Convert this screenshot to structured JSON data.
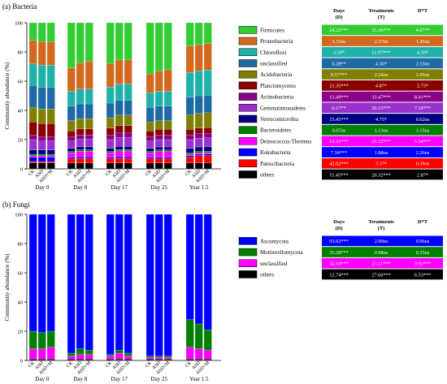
{
  "panel_a": {
    "label": "(a) Bacteria",
    "ylabel": "Community abundance (%)",
    "table_headers": [
      "Days\n(D)",
      "Treatments\n(T)",
      "D*T"
    ]
  },
  "panel_b": {
    "label": "(b) Fungi",
    "ylabel": "Community abundance (%)",
    "table_headers": [
      "Days\n(D)",
      "Treatments\n(T)",
      "D*T"
    ]
  },
  "chart_data": [
    {
      "type": "bar",
      "stacked": true,
      "title": "(a) Bacteria",
      "ylabel": "Community abundance (%)",
      "ylim": [
        0,
        100
      ],
      "yticks": [
        0,
        20,
        40,
        60,
        80,
        100
      ],
      "groups": [
        "Day 0",
        "Day 8",
        "Day 17",
        "Day 25",
        "Year 1.5"
      ],
      "treatments": [
        "CK",
        "ASD",
        "ASD+M"
      ],
      "series": [
        {
          "name": "others",
          "color": "#000000",
          "values": [
            4,
            4,
            4,
            4,
            4,
            4,
            4,
            4,
            4,
            4,
            4,
            4,
            4,
            4,
            4
          ]
        },
        {
          "name": "Patescibacteria",
          "color": "#ff0000",
          "values": [
            1,
            1,
            1,
            3,
            3,
            3,
            3,
            3,
            3,
            3,
            3,
            3,
            4,
            5,
            5
          ]
        },
        {
          "name": "Rokubacteria",
          "color": "#0000ff",
          "values": [
            3,
            3,
            3,
            1,
            1,
            1,
            1,
            1,
            1,
            1,
            1,
            1,
            1,
            1,
            1
          ]
        },
        {
          "name": "Deinococcus-Thermus",
          "color": "#ff00ff",
          "values": [
            1,
            1,
            1,
            3,
            4,
            4,
            3,
            4,
            4,
            3,
            4,
            4,
            1,
            1,
            1
          ]
        },
        {
          "name": "Bacteroidetes",
          "color": "#008000",
          "values": [
            1,
            1,
            1,
            1,
            1,
            1,
            1,
            1,
            1,
            1,
            1,
            1,
            1,
            1,
            1
          ]
        },
        {
          "name": "Verrucomicrobia",
          "color": "#000080",
          "values": [
            3,
            3,
            3,
            2,
            2,
            2,
            2,
            2,
            2,
            2,
            2,
            2,
            3,
            3,
            3
          ]
        },
        {
          "name": "Gemmatimonadetes",
          "color": "#9932cc",
          "values": [
            7,
            6,
            6,
            5,
            5,
            5,
            6,
            6,
            6,
            5,
            5,
            5,
            6,
            6,
            6
          ]
        },
        {
          "name": "Actinobacteria",
          "color": "#8b008b",
          "values": [
            3,
            3,
            3,
            3,
            3,
            3,
            3,
            3,
            3,
            3,
            3,
            3,
            3,
            3,
            3
          ]
        },
        {
          "name": "Planctomycetes",
          "color": "#8b0000",
          "values": [
            9,
            9,
            9,
            4,
            4,
            4,
            5,
            5,
            5,
            4,
            4,
            4,
            4,
            4,
            4
          ]
        },
        {
          "name": "Acidobacteria",
          "color": "#808000",
          "values": [
            10,
            10,
            10,
            7,
            7,
            7,
            7,
            7,
            7,
            6,
            6,
            6,
            10,
            10,
            10
          ]
        },
        {
          "name": "unclassified",
          "color": "#1e6aa5",
          "values": [
            15,
            15,
            15,
            10,
            10,
            10,
            10,
            10,
            10,
            10,
            10,
            10,
            12,
            12,
            12
          ]
        },
        {
          "name": "Chloroflexi",
          "color": "#20b2aa",
          "values": [
            15,
            15,
            15,
            10,
            10,
            10,
            11,
            11,
            11,
            10,
            10,
            10,
            17,
            17,
            17
          ]
        },
        {
          "name": "Proteobacteria",
          "color": "#d2691e",
          "values": [
            16,
            16,
            16,
            16,
            18,
            19,
            16,
            16,
            16,
            13,
            14,
            15,
            18,
            18,
            18
          ]
        },
        {
          "name": "Firmicutes",
          "color": "#32cd32",
          "values": [
            12,
            13,
            13,
            31,
            27,
            26,
            28,
            25,
            25,
            35,
            33,
            32,
            16,
            15,
            14
          ]
        }
      ],
      "stats_table": {
        "headers": [
          "Days\n(D)",
          "Treatments\n(T)",
          "D*T"
        ],
        "rows": [
          {
            "taxon": "Firmicutes",
            "D": "24.22***",
            "T": "31.36***",
            "DT": "4.97**"
          },
          {
            "taxon": "Proteobacteria",
            "D": "1.23ns",
            "T": "2.37ns",
            "DT": "1.45ns"
          },
          {
            "taxon": "Chloroflexi",
            "D": "3.59*",
            "T": "11.97***",
            "DT": "4.39*"
          },
          {
            "taxon": "unclassified",
            "D": "6.28**",
            "T": "4.36*",
            "DT": "2.33ns"
          },
          {
            "taxon": "Acidobacteria",
            "D": "9.57***",
            "T": "2.24ns",
            "DT": "1.95ns"
          },
          {
            "taxon": "Planctomycetes",
            "D": "21.35***",
            "T": "4.87*",
            "DT": "2.73*"
          },
          {
            "taxon": "Actinobacteria",
            "D": "13.49***",
            "T": "33.47***",
            "DT": "8.41***"
          },
          {
            "taxon": "Gemmatimonadetes",
            "D": "6.17**",
            "T": "20.15***",
            "DT": "7.19***"
          },
          {
            "taxon": "Verrucomicrobia",
            "D": "15.45***",
            "T": "4.75*",
            "DT": "0.62ns"
          },
          {
            "taxon": "Bacteroidetes",
            "D": "0.67ns",
            "T": "1.13ns",
            "DT": "1.15ns"
          },
          {
            "taxon": "Deinococcus-Thermus",
            "D": "13.31***",
            "T": "25.32***",
            "DT": "5.54***"
          },
          {
            "taxon": "Rokubacteria",
            "D": "7.34***",
            "T": "1.88ns",
            "DT": "2.26ns"
          },
          {
            "taxon": "Patescibacteria",
            "D": "42.02***",
            "T": "3.37*",
            "DT": "0.39ns"
          },
          {
            "taxon": "others",
            "D": "11.45***",
            "T": "20.32***",
            "DT": "2.87*"
          }
        ]
      }
    },
    {
      "type": "bar",
      "stacked": true,
      "title": "(b) Fungi",
      "ylabel": "Community abundance (%)",
      "ylim": [
        0,
        100
      ],
      "yticks": [
        0,
        20,
        40,
        60,
        80,
        100
      ],
      "groups": [
        "Day 0",
        "Day 8",
        "Day 17",
        "Day 25",
        "Year 1.5"
      ],
      "treatments": [
        "CK",
        "ASD",
        "ASD+M"
      ],
      "series": [
        {
          "name": "others",
          "color": "#000000",
          "values": [
            1,
            1,
            1,
            1,
            1,
            1,
            1,
            1,
            1,
            1,
            1,
            1,
            1,
            1,
            1
          ]
        },
        {
          "name": "unclassified",
          "color": "#ff00ff",
          "values": [
            7,
            7,
            8,
            2,
            3,
            3,
            2,
            4,
            2,
            1,
            1,
            1,
            8,
            7,
            6
          ]
        },
        {
          "name": "Mortierellomycota",
          "color": "#008000",
          "values": [
            12,
            11,
            11,
            2,
            4,
            3,
            1,
            2,
            2,
            1,
            1,
            1,
            19,
            17,
            14
          ]
        },
        {
          "name": "Ascomycota",
          "color": "#0000ff",
          "values": [
            80,
            81,
            80,
            95,
            92,
            93,
            96,
            93,
            95,
            97,
            97,
            97,
            72,
            75,
            79
          ]
        }
      ],
      "stats_table": {
        "headers": [
          "Days\n(D)",
          "Treatments\n(T)",
          "D*T"
        ],
        "rows": [
          {
            "taxon": "Ascomycota",
            "D": "93.02***",
            "T": "2.00ns",
            "DT": "0.96ns"
          },
          {
            "taxon": "Mortierellomycota",
            "D": "35.28***",
            "T": "0.08ns",
            "DT": "0.15ns"
          },
          {
            "taxon": "unclassified",
            "D": "42.54***",
            "T": "23.11***",
            "DT": "9.92***"
          },
          {
            "taxon": "others",
            "D": "12.74***",
            "T": "27.66***",
            "DT": "6.53***"
          }
        ]
      }
    }
  ]
}
